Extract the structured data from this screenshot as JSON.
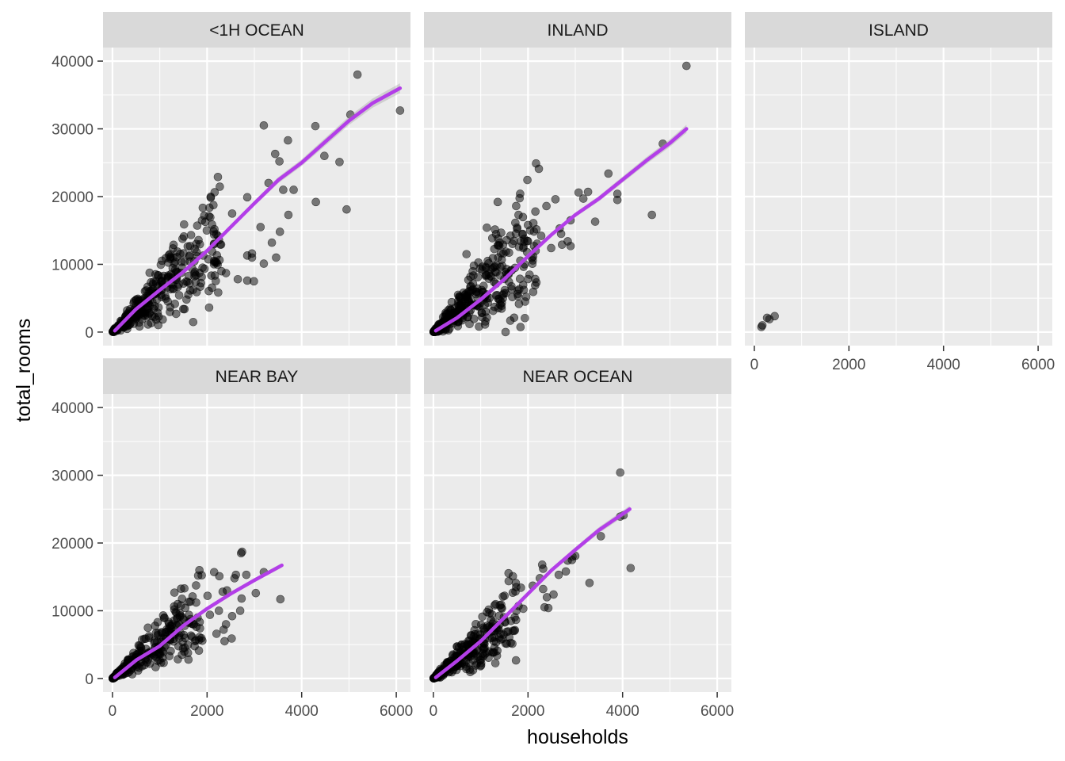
{
  "chart_data": {
    "type": "scatter",
    "xlabel": "households",
    "ylabel": "total_rooms",
    "xlim": [
      -200,
      6300
    ],
    "ylim": [
      -2000,
      42000
    ],
    "x_ticks": [
      0,
      2000,
      4000,
      6000
    ],
    "y_ticks": [
      0,
      10000,
      20000,
      30000,
      40000
    ],
    "grid": true,
    "point_color": "#000000",
    "point_alpha": 0.5,
    "smooth_color": "#b33ee8",
    "panel_bg": "#ebebeb",
    "strip_bg": "#d9d9d9",
    "panels": [
      {
        "label": "<1H OCEAN",
        "outliers": [
          [
            5180,
            38000
          ],
          [
            6080,
            32700
          ],
          [
            5030,
            32100
          ],
          [
            3200,
            30500
          ],
          [
            4290,
            30400
          ],
          [
            3710,
            28300
          ],
          [
            3440,
            26300
          ],
          [
            4480,
            26000
          ],
          [
            3530,
            25200
          ],
          [
            4800,
            25100
          ],
          [
            3300,
            22000
          ],
          [
            3610,
            21000
          ],
          [
            3830,
            21000
          ],
          [
            4300,
            19200
          ],
          [
            2850,
            19900
          ],
          [
            3720,
            17300
          ],
          [
            4950,
            18100
          ],
          [
            3130,
            15500
          ],
          [
            3540,
            14800
          ],
          [
            2530,
            17500
          ],
          [
            3370,
            13200
          ],
          [
            3460,
            11000
          ],
          [
            2850,
            11300
          ],
          [
            2950,
            11000
          ],
          [
            2950,
            11600
          ],
          [
            3200,
            10100
          ],
          [
            2850,
            7600
          ],
          [
            2990,
            7500
          ],
          [
            2400,
            8700
          ],
          [
            2650,
            7800
          ]
        ],
        "cloud": {
          "x_max": 2300,
          "slope": 6.0,
          "spread": 0.34,
          "n": 380,
          "seed": 11
        },
        "smooth": [
          [
            50,
            200
          ],
          [
            500,
            3400
          ],
          [
            1000,
            6200
          ],
          [
            1500,
            8900
          ],
          [
            2000,
            12000
          ],
          [
            2500,
            15500
          ],
          [
            3000,
            19000
          ],
          [
            3500,
            22400
          ],
          [
            4000,
            25000
          ],
          [
            4500,
            28100
          ],
          [
            5000,
            31200
          ],
          [
            5500,
            33800
          ],
          [
            6080,
            36000
          ]
        ]
      },
      {
        "label": "INLAND",
        "outliers": [
          [
            5350,
            39300
          ],
          [
            4850,
            27800
          ],
          [
            3070,
            20600
          ],
          [
            3890,
            20400
          ],
          [
            3270,
            20700
          ],
          [
            3170,
            19700
          ],
          [
            3890,
            19500
          ],
          [
            4620,
            17300
          ],
          [
            3420,
            16300
          ],
          [
            3700,
            23400
          ],
          [
            2230,
            24100
          ],
          [
            1360,
            19200
          ],
          [
            1800,
            17300
          ],
          [
            2390,
            18600
          ],
          [
            2580,
            19600
          ],
          [
            2900,
            16500
          ],
          [
            2670,
            15300
          ],
          [
            2900,
            12700
          ],
          [
            2720,
            12900
          ],
          [
            2280,
            14200
          ],
          [
            2700,
            14500
          ],
          [
            2840,
            13400
          ],
          [
            2000,
            15800
          ],
          [
            2130,
            12700
          ],
          [
            2490,
            12400
          ],
          [
            1130,
            15400
          ],
          [
            1400,
            13200
          ],
          [
            1900,
            12400
          ],
          [
            700,
            11500
          ],
          [
            1150,
            10500
          ]
        ],
        "cloud": {
          "x_max": 2200,
          "slope": 6.0,
          "spread": 0.42,
          "n": 380,
          "seed": 23
        },
        "smooth": [
          [
            50,
            200
          ],
          [
            500,
            2100
          ],
          [
            1000,
            4800
          ],
          [
            1500,
            7800
          ],
          [
            2000,
            11200
          ],
          [
            2500,
            14400
          ],
          [
            3000,
            17300
          ],
          [
            3500,
            19700
          ],
          [
            4000,
            22500
          ],
          [
            4500,
            25300
          ],
          [
            5000,
            27900
          ],
          [
            5350,
            30000
          ]
        ]
      },
      {
        "label": "ISLAND",
        "outliers": [
          [
            150,
            750
          ],
          [
            170,
            1000
          ],
          [
            270,
            2100
          ],
          [
            320,
            1900
          ],
          [
            430,
            2350
          ]
        ],
        "cloud": null,
        "smooth": []
      },
      {
        "label": "NEAR BAY",
        "outliers": [
          [
            2740,
            18700
          ],
          [
            2720,
            18500
          ],
          [
            2150,
            15700
          ],
          [
            2610,
            15300
          ],
          [
            2260,
            15100
          ],
          [
            2580,
            14800
          ],
          [
            2830,
            15300
          ],
          [
            3200,
            15700
          ],
          [
            2330,
            12800
          ],
          [
            2010,
            12200
          ],
          [
            2420,
            13000
          ],
          [
            3030,
            12600
          ],
          [
            2730,
            11800
          ],
          [
            3550,
            11700
          ],
          [
            2250,
            10000
          ],
          [
            2700,
            10000
          ],
          [
            2530,
            9200
          ],
          [
            1520,
            13300
          ],
          [
            2060,
            9400
          ],
          [
            2520,
            5900
          ],
          [
            2370,
            5500
          ],
          [
            2200,
            6600
          ],
          [
            2350,
            7200
          ],
          [
            2400,
            8000
          ],
          [
            1850,
            7400
          ]
        ],
        "cloud": {
          "x_max": 1900,
          "slope": 5.3,
          "spread": 0.32,
          "n": 320,
          "seed": 37
        },
        "smooth": [
          [
            50,
            150
          ],
          [
            500,
            2700
          ],
          [
            1000,
            4800
          ],
          [
            1500,
            7800
          ],
          [
            2000,
            10300
          ],
          [
            2500,
            12500
          ],
          [
            3000,
            14500
          ],
          [
            3580,
            16700
          ]
        ]
      },
      {
        "label": "NEAR OCEAN",
        "outliers": [
          [
            3950,
            30400
          ],
          [
            3950,
            23900
          ],
          [
            4020,
            24100
          ],
          [
            3540,
            21000
          ],
          [
            4170,
            16300
          ],
          [
            2940,
            18000
          ],
          [
            3000,
            18100
          ],
          [
            2840,
            17400
          ],
          [
            2300,
            16800
          ],
          [
            2320,
            16200
          ],
          [
            2650,
            15300
          ],
          [
            2800,
            15800
          ],
          [
            1680,
            15100
          ],
          [
            2540,
            12400
          ],
          [
            2100,
            13700
          ],
          [
            2320,
            13200
          ],
          [
            1850,
            13400
          ],
          [
            2930,
            17500
          ],
          [
            2250,
            14800
          ],
          [
            3300,
            14100
          ],
          [
            2350,
            10500
          ],
          [
            1800,
            10700
          ],
          [
            1900,
            10300
          ],
          [
            2430,
            10400
          ],
          [
            2400,
            12000
          ]
        ],
        "cloud": {
          "x_max": 1750,
          "slope": 5.5,
          "spread": 0.34,
          "n": 320,
          "seed": 53
        },
        "smooth": [
          [
            50,
            150
          ],
          [
            500,
            2600
          ],
          [
            1000,
            5500
          ],
          [
            1500,
            9000
          ],
          [
            2000,
            12500
          ],
          [
            2500,
            16000
          ],
          [
            3000,
            19000
          ],
          [
            3500,
            21900
          ],
          [
            4150,
            25000
          ]
        ]
      }
    ]
  }
}
